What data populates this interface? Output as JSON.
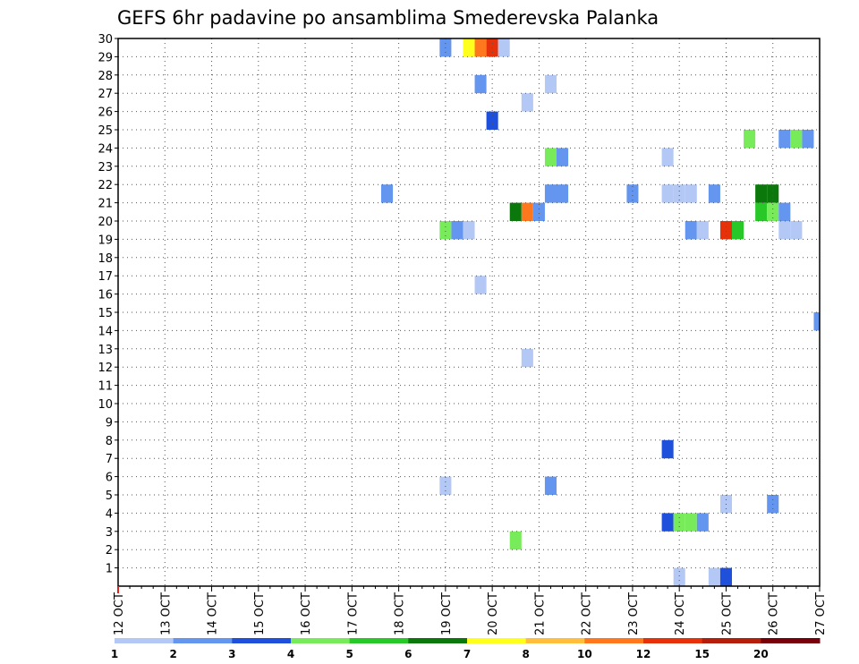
{
  "chart_data": {
    "type": "heatmap",
    "title": "GEFS 6hr padavine po ansamblima Smederevska Palanka",
    "x_tick_labels": [
      "12 OCT",
      "13 OCT",
      "14 OCT",
      "15 OCT",
      "16 OCT",
      "17 OCT",
      "18 OCT",
      "19 OCT",
      "20 OCT",
      "21 OCT",
      "22 OCT",
      "23 OCT",
      "24 OCT",
      "25 OCT",
      "26 OCT",
      "27 OCT"
    ],
    "x_unit": "6-hour step from 12 OCT 00Z (4 steps per day)",
    "xlim": [
      0,
      60
    ],
    "y_tick_labels": [
      "1",
      "2",
      "3",
      "4",
      "5",
      "6",
      "7",
      "8",
      "9",
      "10",
      "11",
      "12",
      "13",
      "14",
      "15",
      "16",
      "17",
      "18",
      "19",
      "20",
      "21",
      "22",
      "23",
      "24",
      "25",
      "26",
      "27",
      "28",
      "29",
      "30"
    ],
    "ylim": [
      0,
      30
    ],
    "grid": true,
    "legend": {
      "position": "bottom",
      "colors": [
        "#b4c8f5",
        "#6496f0",
        "#1e50dc",
        "#78eb5a",
        "#28c828",
        "#0a780a",
        "#ffff1e",
        "#ffbe3c",
        "#ff781e",
        "#e6320a",
        "#b41e0a",
        "#78000a"
      ],
      "labels": [
        "1",
        "2",
        "3",
        "4",
        "5",
        "6",
        "7",
        "8",
        "10",
        "12",
        "15",
        "20"
      ]
    },
    "cells": [
      {
        "x": 28,
        "member": 30,
        "color": "#6496f0"
      },
      {
        "x": 30,
        "member": 30,
        "color": "#ffff1e"
      },
      {
        "x": 31,
        "member": 30,
        "color": "#ff781e"
      },
      {
        "x": 32,
        "member": 30,
        "color": "#e6320a"
      },
      {
        "x": 33,
        "member": 30,
        "color": "#b4c8f5"
      },
      {
        "x": 31,
        "member": 28,
        "color": "#6496f0"
      },
      {
        "x": 37,
        "member": 28,
        "color": "#b4c8f5"
      },
      {
        "x": 35,
        "member": 27,
        "color": "#b4c8f5"
      },
      {
        "x": 32,
        "member": 26,
        "color": "#1e50dc"
      },
      {
        "x": 54,
        "member": 25,
        "color": "#78eb5a"
      },
      {
        "x": 57,
        "member": 25,
        "color": "#6496f0"
      },
      {
        "x": 58,
        "member": 25,
        "color": "#78eb5a"
      },
      {
        "x": 59,
        "member": 25,
        "color": "#6496f0"
      },
      {
        "x": 37,
        "member": 24,
        "color": "#78eb5a"
      },
      {
        "x": 38,
        "member": 24,
        "color": "#6496f0"
      },
      {
        "x": 47,
        "member": 24,
        "color": "#b4c8f5"
      },
      {
        "x": 23,
        "member": 22,
        "color": "#6496f0"
      },
      {
        "x": 37,
        "member": 22,
        "color": "#6496f0"
      },
      {
        "x": 38,
        "member": 22,
        "color": "#6496f0"
      },
      {
        "x": 44,
        "member": 22,
        "color": "#6496f0"
      },
      {
        "x": 47,
        "member": 22,
        "color": "#b4c8f5"
      },
      {
        "x": 48,
        "member": 22,
        "color": "#b4c8f5"
      },
      {
        "x": 49,
        "member": 22,
        "color": "#b4c8f5"
      },
      {
        "x": 51,
        "member": 22,
        "color": "#6496f0"
      },
      {
        "x": 55,
        "member": 22,
        "color": "#0a780a"
      },
      {
        "x": 56,
        "member": 22,
        "color": "#0a780a"
      },
      {
        "x": 34,
        "member": 21,
        "color": "#0a780a"
      },
      {
        "x": 35,
        "member": 21,
        "color": "#ff781e"
      },
      {
        "x": 36,
        "member": 21,
        "color": "#6496f0"
      },
      {
        "x": 55,
        "member": 21,
        "color": "#28c828"
      },
      {
        "x": 56,
        "member": 21,
        "color": "#78eb5a"
      },
      {
        "x": 57,
        "member": 21,
        "color": "#6496f0"
      },
      {
        "x": 28,
        "member": 20,
        "color": "#78eb5a"
      },
      {
        "x": 29,
        "member": 20,
        "color": "#6496f0"
      },
      {
        "x": 30,
        "member": 20,
        "color": "#b4c8f5"
      },
      {
        "x": 49,
        "member": 20,
        "color": "#6496f0"
      },
      {
        "x": 50,
        "member": 20,
        "color": "#b4c8f5"
      },
      {
        "x": 52,
        "member": 20,
        "color": "#e6320a"
      },
      {
        "x": 53,
        "member": 20,
        "color": "#28c828"
      },
      {
        "x": 57,
        "member": 20,
        "color": "#b4c8f5"
      },
      {
        "x": 58,
        "member": 20,
        "color": "#b4c8f5"
      },
      {
        "x": 31,
        "member": 17,
        "color": "#b4c8f5"
      },
      {
        "x": 60,
        "member": 15,
        "color": "#6496f0"
      },
      {
        "x": 35,
        "member": 13,
        "color": "#b4c8f5"
      },
      {
        "x": 47,
        "member": 8,
        "color": "#1e50dc"
      },
      {
        "x": 28,
        "member": 6,
        "color": "#b4c8f5"
      },
      {
        "x": 37,
        "member": 6,
        "color": "#6496f0"
      },
      {
        "x": 52,
        "member": 5,
        "color": "#b4c8f5"
      },
      {
        "x": 56,
        "member": 5,
        "color": "#6496f0"
      },
      {
        "x": 47,
        "member": 4,
        "color": "#1e50dc"
      },
      {
        "x": 48,
        "member": 4,
        "color": "#78eb5a"
      },
      {
        "x": 49,
        "member": 4,
        "color": "#78eb5a"
      },
      {
        "x": 50,
        "member": 4,
        "color": "#6496f0"
      },
      {
        "x": 34,
        "member": 3,
        "color": "#78eb5a"
      },
      {
        "x": 48,
        "member": 1,
        "color": "#b4c8f5"
      },
      {
        "x": 51,
        "member": 1,
        "color": "#b4c8f5"
      },
      {
        "x": 52,
        "member": 1,
        "color": "#1e50dc"
      }
    ]
  }
}
